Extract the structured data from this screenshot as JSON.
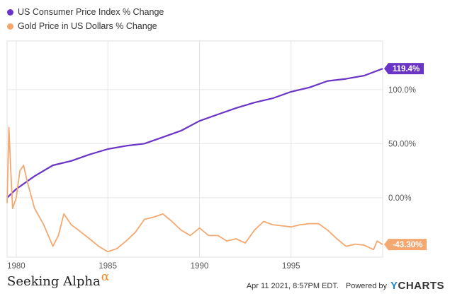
{
  "chart_data": {
    "type": "line",
    "series": [
      {
        "name": "US Consumer Price Index % Change",
        "color": "#6a34c7",
        "end_label": "119.4%",
        "x": [
          1979.5,
          1980,
          1981,
          1982,
          1983,
          1984,
          1985,
          1986,
          1987,
          1988,
          1989,
          1990,
          1991,
          1992,
          1993,
          1994,
          1995,
          1996,
          1997,
          1998,
          1999,
          2000
        ],
        "y": [
          0,
          8,
          20,
          30,
          34,
          40,
          45,
          48,
          50,
          56,
          62,
          71,
          77,
          83,
          88,
          92,
          98,
          102,
          108,
          110,
          113,
          119.4
        ]
      },
      {
        "name": "Gold Price in US Dollars % Change",
        "color": "#f4a870",
        "end_label": "-43.30%",
        "x": [
          1979.5,
          1979.6,
          1979.7,
          1979.8,
          1980,
          1980.2,
          1980.4,
          1980.6,
          1981,
          1981.5,
          1982,
          1982.3,
          1982.6,
          1983,
          1983.4,
          1984,
          1984.5,
          1985,
          1985.5,
          1986,
          1986.5,
          1987,
          1987.5,
          1988,
          1988.5,
          1989,
          1989.5,
          1990,
          1990.5,
          1991,
          1991.5,
          1992,
          1992.5,
          1993,
          1993.5,
          1994,
          1994.5,
          1995,
          1995.5,
          1996,
          1996.5,
          1997,
          1997.5,
          1998,
          1998.5,
          1999,
          1999.5,
          1999.7,
          2000
        ],
        "y": [
          -5,
          65,
          25,
          -10,
          0,
          25,
          30,
          15,
          -10,
          -25,
          -45,
          -35,
          -15,
          -25,
          -30,
          -38,
          -45,
          -50,
          -47,
          -40,
          -32,
          -20,
          -18,
          -15,
          -22,
          -30,
          -35,
          -28,
          -35,
          -35,
          -40,
          -38,
          -42,
          -30,
          -22,
          -25,
          -26,
          -27,
          -25,
          -24,
          -24,
          -30,
          -38,
          -45,
          -43,
          -44,
          -48,
          -40,
          -43.3
        ]
      }
    ],
    "x_ticks": [
      "1980",
      "1985",
      "1990",
      "1995"
    ],
    "x_tick_values": [
      1980,
      1985,
      1990,
      1995
    ],
    "y_ticks": [
      "100.0%",
      "50.00%",
      "0.00%"
    ],
    "y_tick_values": [
      100,
      50,
      0
    ],
    "xlim": [
      1979.5,
      2000
    ],
    "ylim": [
      -55,
      145
    ],
    "grid": true,
    "legend_position": "top-left"
  },
  "footer": {
    "brand": "Seeking Alpha",
    "brand_mark": "α",
    "timestamp": "Apr 11 2021, 8:57PM EDT.",
    "powered_by": "Powered by",
    "ycharts_y": "Y",
    "ycharts_rest": "CHARTS"
  }
}
